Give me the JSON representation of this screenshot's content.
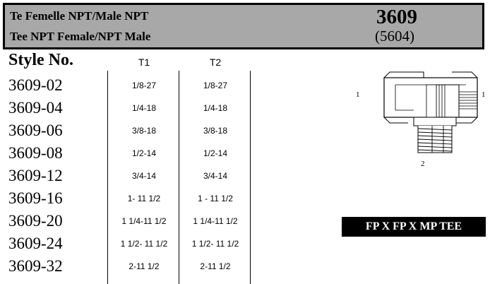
{
  "header": {
    "title_fr": "Te Femelle NPT/Male NPT",
    "title_en": "Tee NPT Female/NPT Male",
    "part_number": "3609",
    "alt_number": "(5604)"
  },
  "table": {
    "style_header": "Style No.",
    "col1_header": "T1",
    "col2_header": "T2",
    "rows": [
      {
        "style": "3609-02",
        "t1": "1/8-27",
        "t2": "1/8-27"
      },
      {
        "style": "3609-04",
        "t1": "1/4-18",
        "t2": "1/4-18"
      },
      {
        "style": "3609-06",
        "t1": "3/8-18",
        "t2": "3/8-18"
      },
      {
        "style": "3609-08",
        "t1": "1/2-14",
        "t2": "1/2-14"
      },
      {
        "style": "3609-12",
        "t1": "3/4-14",
        "t2": "3/4-14"
      },
      {
        "style": "3609-16",
        "t1": "1- 11 1/2",
        "t2": "1 - 11 1/2"
      },
      {
        "style": "3609-20",
        "t1": "1 1/4-11 1/2",
        "t2": "1 1/4-11 1/2"
      },
      {
        "style": "3609-24",
        "t1": "1 1/2- 11 1/2",
        "t2": "1 1/2- 11 1/2"
      },
      {
        "style": "3609-32",
        "t1": "2-11 1/2",
        "t2": "2-11 1/2"
      }
    ]
  },
  "diagram": {
    "label_left": "1",
    "label_right": "1",
    "label_bottom": "2"
  },
  "badge": "FP X FP X MP TEE"
}
